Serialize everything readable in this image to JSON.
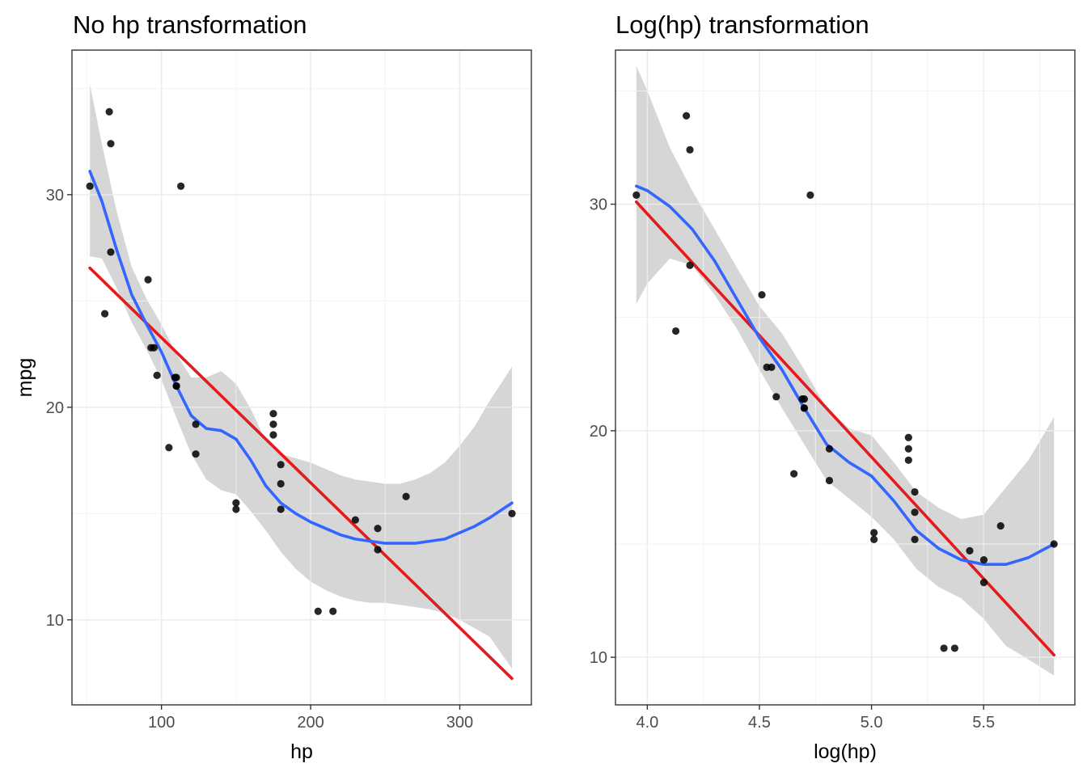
{
  "chart_data": [
    {
      "type": "scatter",
      "title": "No hp transformation",
      "xlabel": "hp",
      "ylabel": "mpg",
      "xlim": [
        40,
        348
      ],
      "ylim": [
        6,
        36.8
      ],
      "xticks": [
        100,
        200,
        300
      ],
      "yticks": [
        10,
        20,
        30
      ],
      "xtick_labels": [
        "100",
        "200",
        "300"
      ],
      "ytick_labels": [
        "10",
        "20",
        "30"
      ],
      "grid": true,
      "colors": {
        "points": "#000000",
        "loess": "#3366ff",
        "linear": "#e41a1c",
        "band": "#cccccc"
      },
      "points": [
        {
          "x": 110,
          "y": 21.0
        },
        {
          "x": 110,
          "y": 21.0
        },
        {
          "x": 93,
          "y": 22.8
        },
        {
          "x": 110,
          "y": 21.4
        },
        {
          "x": 175,
          "y": 18.7
        },
        {
          "x": 105,
          "y": 18.1
        },
        {
          "x": 245,
          "y": 14.3
        },
        {
          "x": 62,
          "y": 24.4
        },
        {
          "x": 95,
          "y": 22.8
        },
        {
          "x": 123,
          "y": 19.2
        },
        {
          "x": 123,
          "y": 17.8
        },
        {
          "x": 180,
          "y": 16.4
        },
        {
          "x": 180,
          "y": 17.3
        },
        {
          "x": 180,
          "y": 15.2
        },
        {
          "x": 205,
          "y": 10.4
        },
        {
          "x": 215,
          "y": 10.4
        },
        {
          "x": 230,
          "y": 14.7
        },
        {
          "x": 66,
          "y": 32.4
        },
        {
          "x": 52,
          "y": 30.4
        },
        {
          "x": 65,
          "y": 33.9
        },
        {
          "x": 97,
          "y": 21.5
        },
        {
          "x": 150,
          "y": 15.5
        },
        {
          "x": 150,
          "y": 15.2
        },
        {
          "x": 245,
          "y": 13.3
        },
        {
          "x": 175,
          "y": 19.2
        },
        {
          "x": 66,
          "y": 27.3
        },
        {
          "x": 91,
          "y": 26.0
        },
        {
          "x": 113,
          "y": 30.4
        },
        {
          "x": 264,
          "y": 15.8
        },
        {
          "x": 175,
          "y": 19.7
        },
        {
          "x": 335,
          "y": 15.0
        },
        {
          "x": 109,
          "y": 21.4
        }
      ],
      "series": [
        {
          "type": "line",
          "x": [
            52,
            335
          ],
          "y": [
            26.55,
            7.24
          ]
        },
        {
          "type": "line",
          "x": [
            52,
            60,
            70,
            80,
            90,
            100,
            110,
            120,
            130,
            140,
            150,
            160,
            170,
            180,
            190,
            200,
            210,
            220,
            230,
            240,
            250,
            260,
            270,
            280,
            290,
            300,
            310,
            320,
            335
          ],
          "y": [
            31.1,
            29.7,
            27.4,
            25.3,
            23.9,
            22.6,
            21.0,
            19.6,
            19.0,
            18.9,
            18.5,
            17.5,
            16.3,
            15.5,
            15.0,
            14.6,
            14.3,
            14.0,
            13.8,
            13.7,
            13.6,
            13.6,
            13.6,
            13.7,
            13.8,
            14.1,
            14.4,
            14.8,
            15.5
          ]
        }
      ],
      "confidence_band": {
        "x": [
          52,
          60,
          70,
          80,
          90,
          100,
          110,
          120,
          130,
          140,
          150,
          160,
          170,
          180,
          190,
          200,
          210,
          220,
          230,
          240,
          250,
          260,
          270,
          280,
          290,
          300,
          310,
          320,
          335
        ],
        "lower": [
          27.1,
          27.0,
          25.6,
          24.0,
          22.7,
          21.3,
          19.5,
          17.8,
          16.6,
          16.1,
          15.9,
          15.1,
          14.2,
          13.2,
          12.4,
          11.8,
          11.4,
          11.1,
          10.9,
          10.8,
          10.8,
          10.7,
          10.6,
          10.5,
          10.3,
          10.0,
          9.6,
          9.2,
          7.7
        ],
        "upper": [
          35.2,
          32.4,
          29.2,
          26.6,
          25.1,
          23.9,
          22.5,
          21.4,
          21.4,
          21.7,
          21.1,
          19.9,
          18.4,
          17.8,
          17.6,
          17.4,
          17.1,
          16.8,
          16.6,
          16.5,
          16.4,
          16.4,
          16.6,
          16.9,
          17.4,
          18.2,
          19.1,
          20.3,
          21.9
        ]
      }
    },
    {
      "type": "scatter",
      "title": "Log(hp) transformation",
      "xlabel": "log(hp)",
      "ylim": [
        7.9,
        36.8
      ],
      "xlim": [
        3.858,
        5.907
      ],
      "xticks": [
        4.0,
        4.5,
        5.0,
        5.5
      ],
      "yticks": [
        10,
        20,
        30
      ],
      "xtick_labels": [
        "4.0",
        "4.5",
        "5.0",
        "5.5"
      ],
      "ytick_labels": [
        "10",
        "20",
        "30"
      ],
      "grid": true,
      "colors": {
        "points": "#000000",
        "loess": "#3366ff",
        "linear": "#e41a1c",
        "band": "#cccccc"
      },
      "points": [
        {
          "x": 4.7,
          "y": 21.0
        },
        {
          "x": 4.7,
          "y": 21.0
        },
        {
          "x": 4.533,
          "y": 22.8
        },
        {
          "x": 4.7,
          "y": 21.4
        },
        {
          "x": 5.165,
          "y": 18.7
        },
        {
          "x": 4.654,
          "y": 18.1
        },
        {
          "x": 5.501,
          "y": 14.3
        },
        {
          "x": 4.127,
          "y": 24.4
        },
        {
          "x": 4.554,
          "y": 22.8
        },
        {
          "x": 4.812,
          "y": 19.2
        },
        {
          "x": 4.812,
          "y": 17.8
        },
        {
          "x": 5.193,
          "y": 16.4
        },
        {
          "x": 5.193,
          "y": 17.3
        },
        {
          "x": 5.193,
          "y": 15.2
        },
        {
          "x": 5.323,
          "y": 10.4
        },
        {
          "x": 5.371,
          "y": 10.4
        },
        {
          "x": 5.438,
          "y": 14.7
        },
        {
          "x": 4.19,
          "y": 32.4
        },
        {
          "x": 3.951,
          "y": 30.4
        },
        {
          "x": 4.174,
          "y": 33.9
        },
        {
          "x": 4.575,
          "y": 21.5
        },
        {
          "x": 5.011,
          "y": 15.5
        },
        {
          "x": 5.011,
          "y": 15.2
        },
        {
          "x": 5.501,
          "y": 13.3
        },
        {
          "x": 5.165,
          "y": 19.2
        },
        {
          "x": 4.19,
          "y": 27.3
        },
        {
          "x": 4.511,
          "y": 26.0
        },
        {
          "x": 4.727,
          "y": 30.4
        },
        {
          "x": 5.576,
          "y": 15.8
        },
        {
          "x": 5.165,
          "y": 19.7
        },
        {
          "x": 5.814,
          "y": 15.0
        },
        {
          "x": 4.691,
          "y": 21.4
        }
      ],
      "series": [
        {
          "type": "line",
          "x": [
            3.951,
            5.814
          ],
          "y": [
            30.1,
            10.1
          ]
        },
        {
          "type": "line",
          "x": [
            3.951,
            4.0,
            4.1,
            4.2,
            4.3,
            4.4,
            4.5,
            4.6,
            4.7,
            4.8,
            4.9,
            5.0,
            5.1,
            5.2,
            5.3,
            5.4,
            5.5,
            5.6,
            5.7,
            5.814
          ],
          "y": [
            30.8,
            30.6,
            29.9,
            28.9,
            27.5,
            25.8,
            24.1,
            22.7,
            21.0,
            19.4,
            18.6,
            18.0,
            16.9,
            15.6,
            14.8,
            14.3,
            14.1,
            14.1,
            14.4,
            15.0
          ]
        }
      ],
      "confidence_band": {
        "x": [
          3.951,
          4.0,
          4.1,
          4.2,
          4.3,
          4.4,
          4.5,
          4.6,
          4.7,
          4.8,
          4.9,
          5.0,
          5.1,
          5.2,
          5.3,
          5.4,
          5.5,
          5.6,
          5.7,
          5.814
        ],
        "lower": [
          25.6,
          26.5,
          27.6,
          27.3,
          26.0,
          24.5,
          22.7,
          21.0,
          19.4,
          17.8,
          17.0,
          16.2,
          15.2,
          13.9,
          13.1,
          12.6,
          11.7,
          10.5,
          9.9,
          9.2
        ],
        "upper": [
          36.1,
          35.0,
          32.5,
          30.6,
          28.9,
          27.2,
          25.5,
          24.3,
          22.7,
          21.0,
          20.1,
          19.8,
          18.6,
          17.3,
          16.6,
          16.1,
          16.3,
          17.5,
          18.7,
          20.6
        ]
      }
    }
  ]
}
